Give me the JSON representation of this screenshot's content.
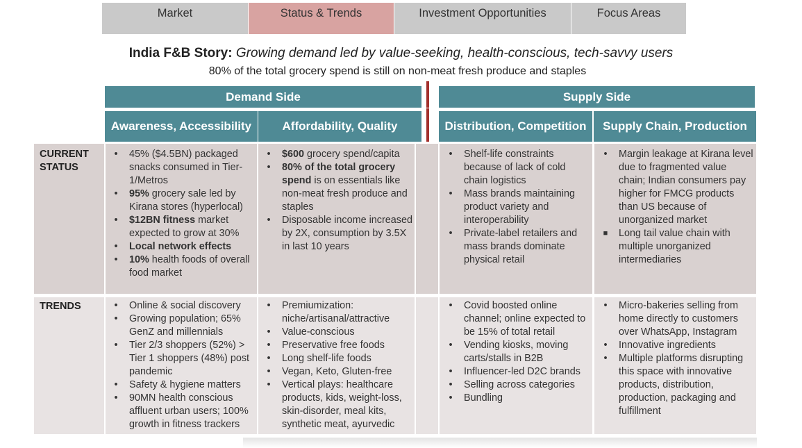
{
  "tabs": [
    {
      "label": "Market"
    },
    {
      "label": "Status & Trends"
    },
    {
      "label": "Investment Opportunities"
    },
    {
      "label": "Focus Areas"
    }
  ],
  "headline": {
    "bold": "India F&B Story:",
    "italic": "Growing demand led by value-seeking, health-conscious, tech-savvy users",
    "subtitle": "80% of the total grocery spend is still on non-meat fresh produce and staples"
  },
  "sections": {
    "demand": "Demand Side",
    "supply": "Supply Side"
  },
  "columns": [
    {
      "label": "Awareness, Accessibility"
    },
    {
      "label": "Affordability, Quality"
    },
    {
      "label": "Distribution, Competition"
    },
    {
      "label": "Supply Chain, Production"
    }
  ],
  "rows": {
    "current_status": "CURRENT STATUS",
    "trends": "TRENDS"
  },
  "colors": {
    "header_band": "#4f8a95",
    "active_tab": "#d8a3a1",
    "tab": "#c9c9c9",
    "divider": "#a3302c"
  },
  "current": {
    "awareness": [
      {
        "bold": "",
        "text": "45% ($4.5BN) packaged snacks consumed in Tier-1/Metros"
      },
      {
        "bold": "95%",
        "text": " grocery sale led by Kirana stores (hyperlocal)"
      },
      {
        "bold": "$12BN fitness",
        "text": " market expected to grow at 30%"
      },
      {
        "bold": "Local network effects",
        "text": ""
      },
      {
        "bold": "10%",
        "text": " health foods of overall food market"
      }
    ],
    "affordability": [
      {
        "bold": "$600",
        "text": " grocery spend/capita"
      },
      {
        "bold": "80% of the total grocery spend",
        "text": " is on essentials like non-meat fresh produce and staples"
      },
      {
        "bold": "",
        "text": "Disposable income increased by 2X, consumption by 3.5X in last 10 years"
      }
    ],
    "distribution": [
      {
        "bold": "",
        "text": "Shelf-life constraints because of lack of cold chain logistics"
      },
      {
        "bold": "",
        "text": "Mass brands maintaining product variety and interoperability"
      },
      {
        "bold": "",
        "text": "Private-label retailers and mass brands dominate physical retail"
      }
    ],
    "supply_chain": [
      {
        "bold": "",
        "text": "Margin leakage at Kirana level due to fragmented value chain; Indian consumers pay higher for FMCG products than US because of unorganized market"
      },
      {
        "bold": "",
        "text": "Long tail value chain with multiple unorganized intermediaries"
      }
    ]
  },
  "trends": {
    "awareness": [
      "Online & social discovery",
      "Growing population; 65% GenZ and millennials",
      "Tier 2/3 shoppers (52%) > Tier 1 shoppers (48%) post pandemic",
      "Safety & hygiene matters",
      "90MN health conscious affluent urban users; 100% growth in fitness trackers"
    ],
    "affordability": [
      "Premiumization: niche/artisanal/attractive",
      "Value-conscious",
      "Preservative free foods",
      "Long shelf-life foods",
      "Vegan, Keto, Gluten-free",
      "Vertical plays: healthcare products, kids, weight-loss, skin-disorder, meal kits, synthetic meat, ayurvedic"
    ],
    "distribution": [
      "Covid boosted online channel; online expected to be 15% of total retail",
      "Vending kiosks, moving carts/stalls in B2B",
      "Influencer-led D2C brands",
      "Selling across categories",
      "Bundling"
    ],
    "supply_chain": [
      "Micro-bakeries selling from home directly to customers over WhatsApp, Instagram",
      "Innovative ingredients",
      "Multiple platforms disrupting this space with innovative products, distribution, production, packaging and fulfillment"
    ]
  }
}
